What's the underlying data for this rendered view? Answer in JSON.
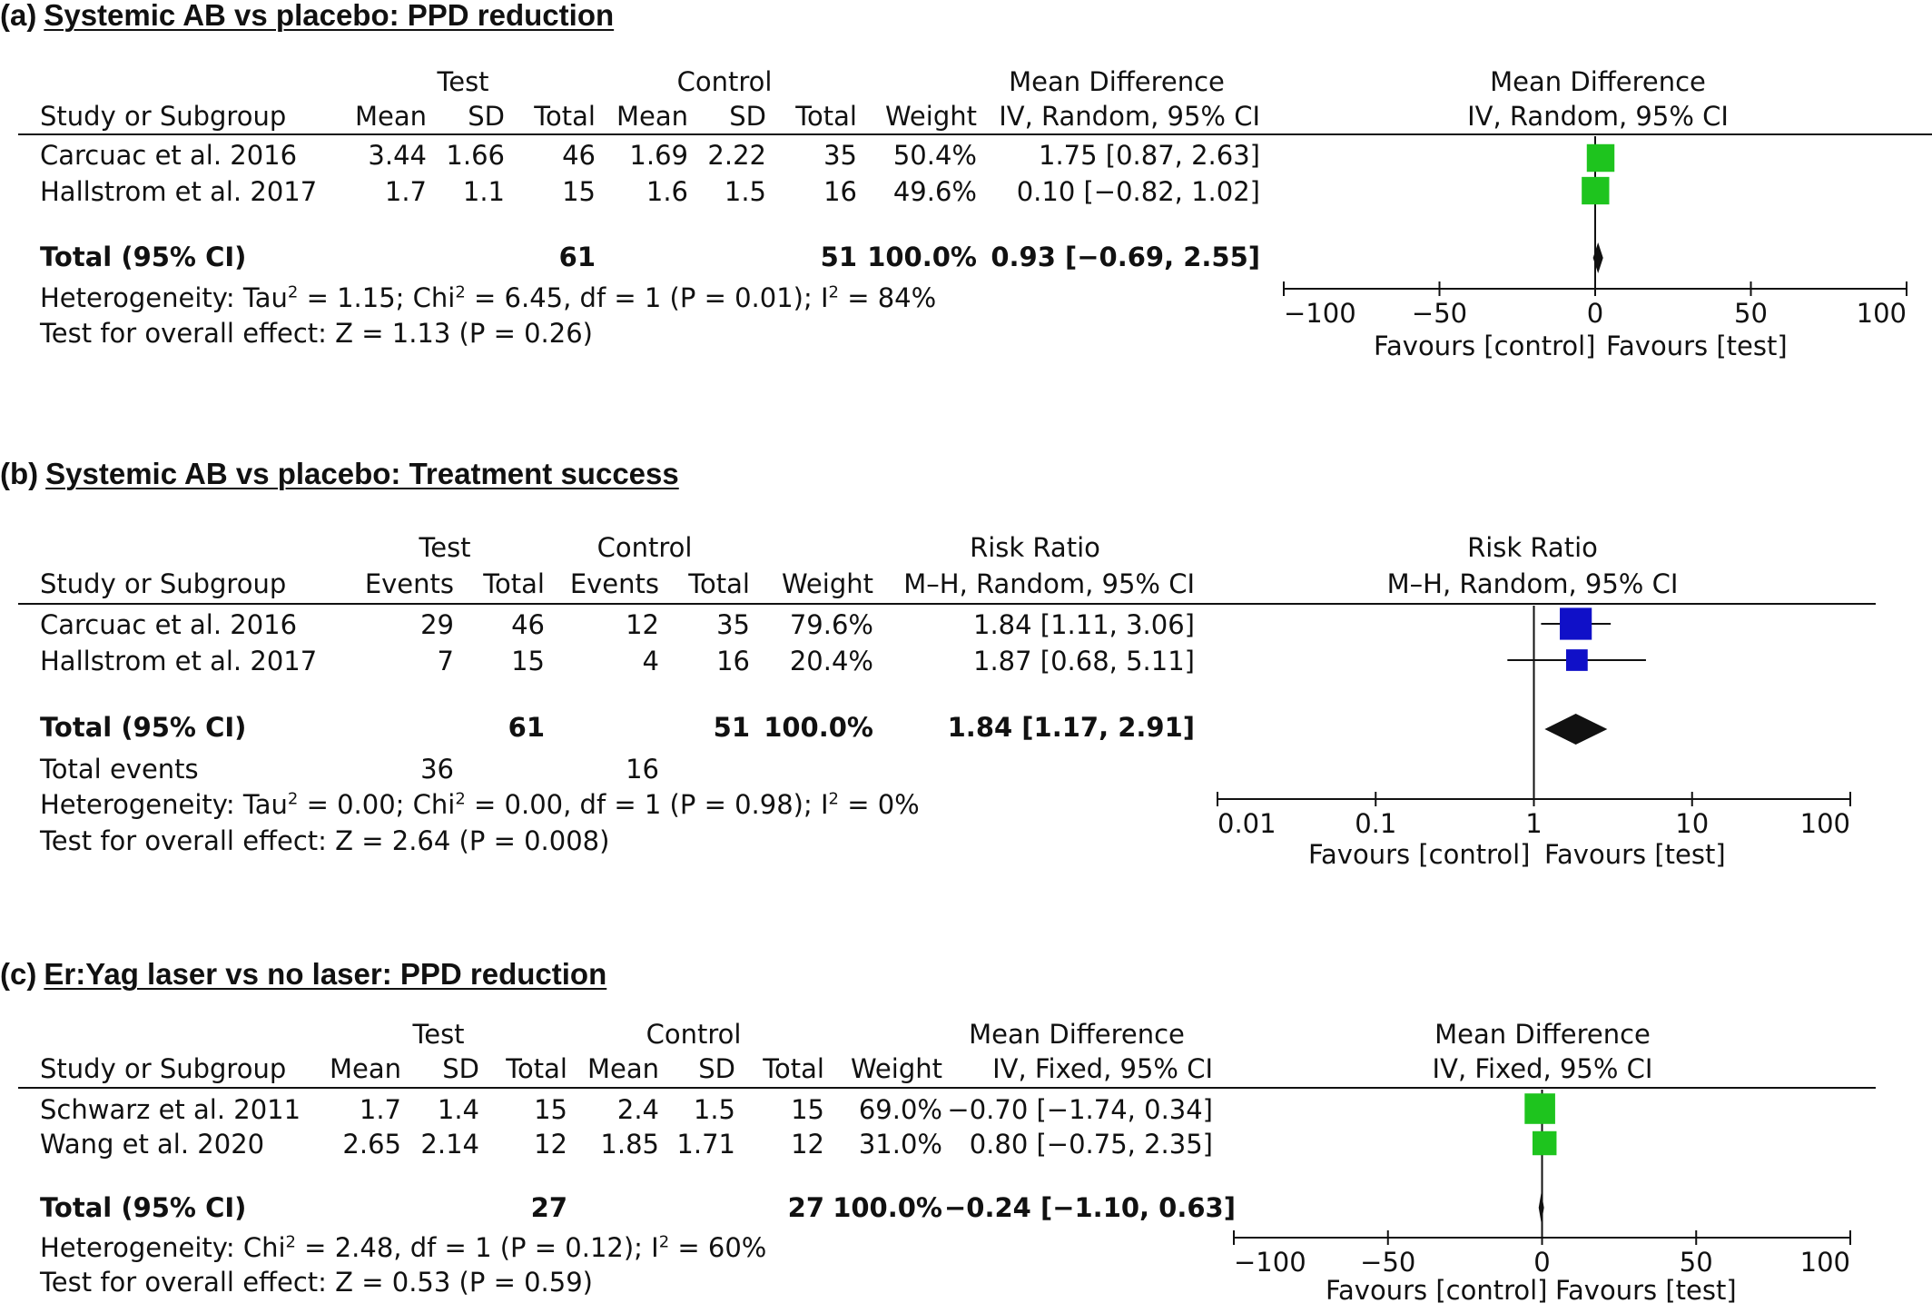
{
  "chart_data": [
    {
      "type": "forest",
      "panel_label": "(a)",
      "title": "Systemic AB vs placebo: PPD reduction",
      "group_headers": [
        "Test",
        "Control"
      ],
      "columns": [
        "Study or Subgroup",
        "Mean",
        "SD",
        "Total",
        "Mean",
        "SD",
        "Total",
        "Weight",
        "IV, Random, 95% CI"
      ],
      "effect_header": "Mean Difference",
      "effect_method": "IV, Random, 95% CI",
      "studies": [
        {
          "name": "Carcuac et al. 2016",
          "cells": [
            "3.44",
            "1.66",
            "46",
            "1.69",
            "2.22",
            "35",
            "50.4%",
            "1.75 [0.87, 2.63]"
          ],
          "est": 1.75,
          "lo": 0.87,
          "hi": 2.63,
          "weight": 50.4
        },
        {
          "name": "Hallstrom et al. 2017",
          "cells": [
            "1.7",
            "1.1",
            "15",
            "1.6",
            "1.5",
            "16",
            "49.6%",
            "0.10 [−0.82, 1.02]"
          ],
          "est": 0.1,
          "lo": -0.82,
          "hi": 1.02,
          "weight": 49.6
        }
      ],
      "total": {
        "label": "Total (95% CI)",
        "test_total": "61",
        "control_total": "51",
        "weight": "100.0%",
        "ci": "0.93 [−0.69, 2.55]",
        "est": 0.93,
        "lo": -0.69,
        "hi": 2.55
      },
      "notes": [
        "Heterogeneity: Tau² = 1.15; Chi² = 6.45, df = 1 (P = 0.01); I² = 84%",
        "Test for overall effect: Z = 1.13 (P = 0.26)"
      ],
      "axis": {
        "scale": "linear",
        "range": [
          -100,
          100
        ],
        "ticks": [
          -100,
          -50,
          0,
          50,
          100
        ],
        "tick_labels": [
          "−100",
          "−50",
          "0",
          "50",
          "100"
        ]
      },
      "favours": [
        "Favours [control]",
        "Favours [test]"
      ],
      "marker_color": "#1ec41e",
      "show_ci_lines": false
    },
    {
      "type": "forest",
      "panel_label": "(b)",
      "title": "Systemic AB vs placebo: Treatment success",
      "group_headers": [
        "Test",
        "Control"
      ],
      "columns": [
        "Study or Subgroup",
        "Events",
        "Total",
        "Events",
        "Total",
        "Weight",
        "M–H, Random, 95% CI"
      ],
      "effect_header": "Risk Ratio",
      "effect_method": "M–H, Random, 95% CI",
      "studies": [
        {
          "name": "Carcuac et al. 2016",
          "cells": [
            "29",
            "46",
            "12",
            "35",
            "79.6%",
            "1.84 [1.11, 3.06]"
          ],
          "est": 1.84,
          "lo": 1.11,
          "hi": 3.06,
          "weight": 79.6
        },
        {
          "name": "Hallstrom et al. 2017",
          "cells": [
            "7",
            "15",
            "4",
            "16",
            "20.4%",
            "1.87 [0.68, 5.11]"
          ],
          "est": 1.87,
          "lo": 0.68,
          "hi": 5.11,
          "weight": 20.4
        }
      ],
      "total": {
        "label": "Total (95% CI)",
        "test_total": "61",
        "control_total": "51",
        "weight": "100.0%",
        "ci": "1.84 [1.17, 2.91]",
        "est": 1.84,
        "lo": 1.17,
        "hi": 2.91
      },
      "events": {
        "label": "Total events",
        "test": "36",
        "control": "16"
      },
      "notes": [
        "Heterogeneity: Tau² = 0.00; Chi² = 0.00, df = 1 (P = 0.98); I² = 0%",
        "Test for overall effect: Z = 2.64 (P = 0.008)"
      ],
      "axis": {
        "scale": "log",
        "range": [
          0.01,
          100
        ],
        "ticks": [
          0.01,
          0.1,
          1,
          10,
          100
        ],
        "tick_labels": [
          "0.01",
          "0.1",
          "1",
          "10",
          "100"
        ]
      },
      "favours": [
        "Favours [control]",
        "Favours [test]"
      ],
      "marker_color": "#1010c8",
      "show_ci_lines": true
    },
    {
      "type": "forest",
      "panel_label": "(c)",
      "title": "Er:Yag laser vs no laser: PPD reduction",
      "group_headers": [
        "Test",
        "Control"
      ],
      "columns": [
        "Study or Subgroup",
        "Mean",
        "SD",
        "Total",
        "Mean",
        "SD",
        "Total",
        "Weight",
        "IV, Fixed, 95% CI"
      ],
      "effect_header": "Mean Difference",
      "effect_method": "IV, Fixed, 95% CI",
      "studies": [
        {
          "name": "Schwarz et al. 2011",
          "cells": [
            "1.7",
            "1.4",
            "15",
            "2.4",
            "1.5",
            "15",
            "69.0%",
            "−0.70 [−1.74, 0.34]"
          ],
          "est": -0.7,
          "lo": -1.74,
          "hi": 0.34,
          "weight": 69.0
        },
        {
          "name": "Wang et al. 2020",
          "cells": [
            "2.65",
            "2.14",
            "12",
            "1.85",
            "1.71",
            "12",
            "31.0%",
            "0.80 [−0.75, 2.35]"
          ],
          "est": 0.8,
          "lo": -0.75,
          "hi": 2.35,
          "weight": 31.0
        }
      ],
      "total": {
        "label": "Total (95% CI)",
        "test_total": "27",
        "control_total": "27",
        "weight": "100.0%",
        "ci": "−0.24 [−1.10, 0.63]",
        "est": -0.24,
        "lo": -1.1,
        "hi": 0.63
      },
      "notes": [
        "Heterogeneity: Chi² = 2.48, df = 1 (P = 0.12); I² = 60%",
        "Test for overall effect: Z = 0.53 (P = 0.59)"
      ],
      "axis": {
        "scale": "linear",
        "range": [
          -100,
          100
        ],
        "ticks": [
          -100,
          -50,
          0,
          50,
          100
        ],
        "tick_labels": [
          "−100",
          "−50",
          "0",
          "50",
          "100"
        ]
      },
      "favours": [
        "Favours [control]",
        "Favours [test]"
      ],
      "marker_color": "#1ec41e",
      "show_ci_lines": false
    }
  ]
}
